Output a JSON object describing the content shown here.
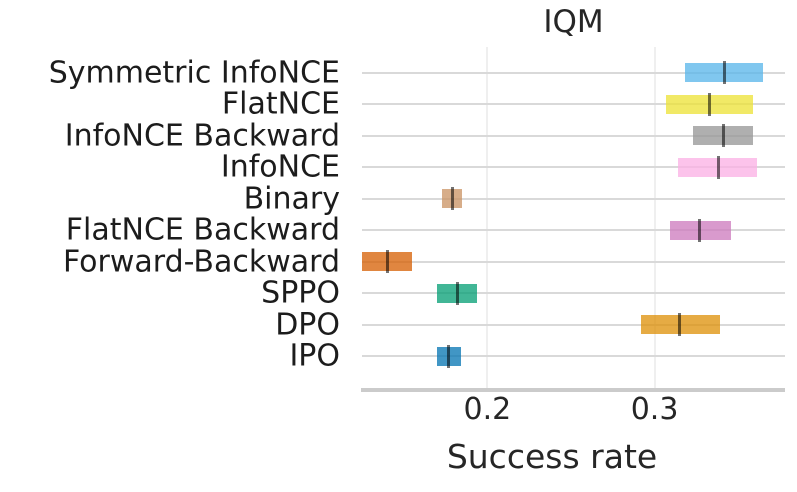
{
  "chart_data": {
    "type": "bar",
    "subtype": "horizontal-interval-estimates",
    "title": "IQM",
    "xlabel": "Success rate",
    "ylabel": "",
    "xlim": [
      0.125,
      0.378
    ],
    "grid": true,
    "legend": "none",
    "xticks": [
      {
        "value": 0.2,
        "label": "0.2"
      },
      {
        "value": 0.3,
        "label": "0.3"
      }
    ],
    "categories": [
      "Symmetric InfoNCE",
      "FlatNCE",
      "InfoNCE Backward",
      "InfoNCE",
      "Binary",
      "FlatNCE Backward",
      "Forward-Backward",
      "SPPO",
      "DPO",
      "IPO"
    ],
    "rows": [
      {
        "label": "Symmetric InfoNCE",
        "ci_low": 0.318,
        "ci_high": 0.365,
        "iqm": 0.342,
        "color": "#56B4E9"
      },
      {
        "label": "FlatNCE",
        "ci_low": 0.307,
        "ci_high": 0.359,
        "iqm": 0.333,
        "color": "#ECE133"
      },
      {
        "label": "InfoNCE Backward",
        "ci_low": 0.323,
        "ci_high": 0.359,
        "iqm": 0.341,
        "color": "#949494"
      },
      {
        "label": "InfoNCE",
        "ci_low": 0.314,
        "ci_high": 0.361,
        "iqm": 0.338,
        "color": "#FBAFE4"
      },
      {
        "label": "Binary",
        "ci_low": 0.173,
        "ci_high": 0.185,
        "iqm": 0.179,
        "color": "#CA9161"
      },
      {
        "label": "FlatNCE Backward",
        "ci_low": 0.309,
        "ci_high": 0.346,
        "iqm": 0.327,
        "color": "#CC78BC"
      },
      {
        "label": "Forward-Backward",
        "ci_low": 0.125,
        "ci_high": 0.155,
        "iqm": 0.14,
        "color": "#D55E00"
      },
      {
        "label": "SPPO",
        "ci_low": 0.17,
        "ci_high": 0.194,
        "iqm": 0.182,
        "color": "#029E73"
      },
      {
        "label": "DPO",
        "ci_low": 0.292,
        "ci_high": 0.339,
        "iqm": 0.315,
        "color": "#DE8F05"
      },
      {
        "label": "IPO",
        "ci_low": 0.17,
        "ci_high": 0.184,
        "iqm": 0.177,
        "color": "#0173B2"
      }
    ],
    "colors": {
      "iqm_line": "rgba(0,0,0,0.55)",
      "hgrid": "#d9d9d9",
      "vgrid": "#efefef",
      "axis_spine": "#cbcbcb",
      "text": "#262626"
    }
  }
}
